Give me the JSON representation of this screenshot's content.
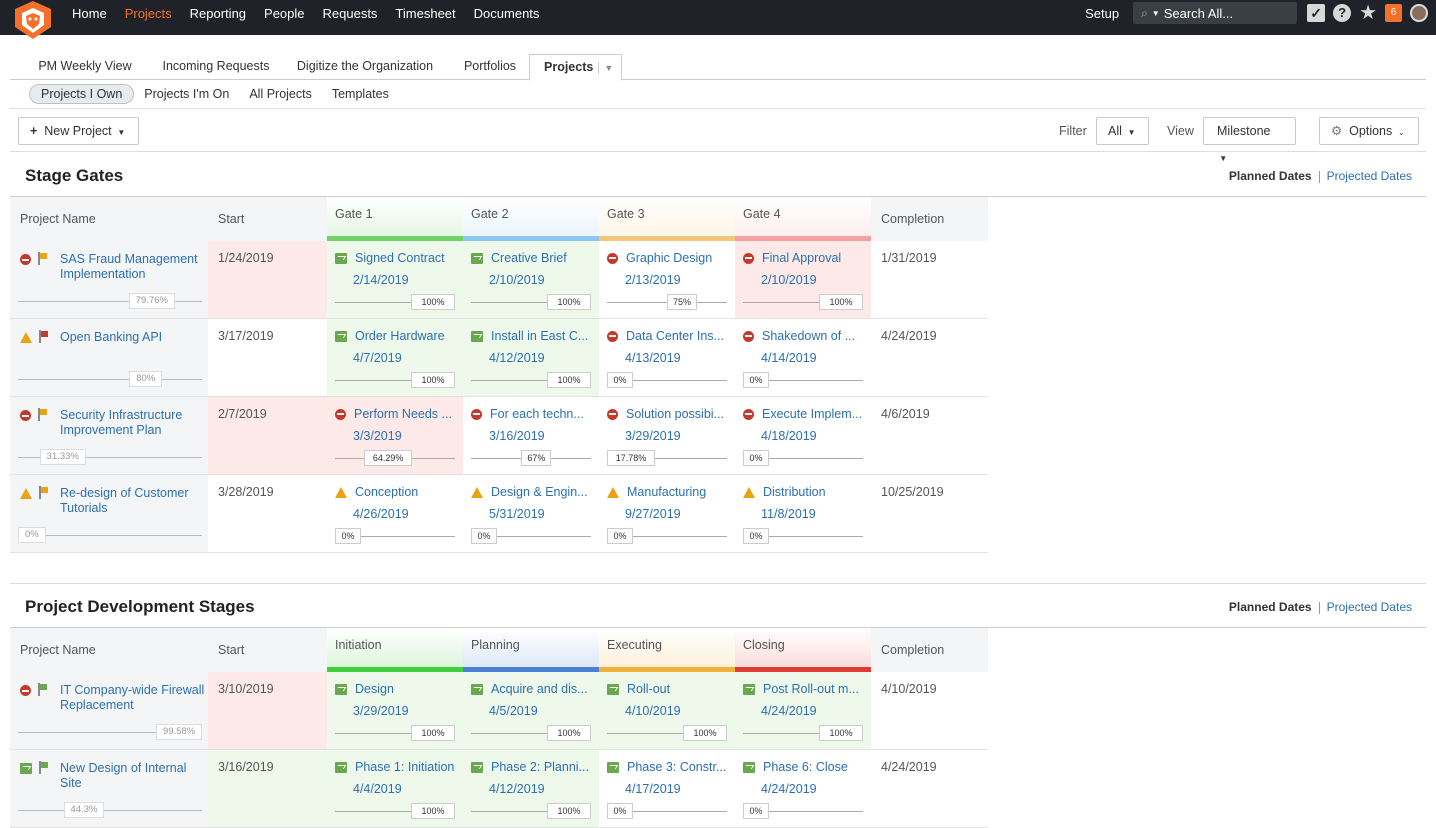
{
  "nav": {
    "items": [
      "Home",
      "Projects",
      "Reporting",
      "People",
      "Requests",
      "Timesheet",
      "Documents"
    ],
    "active": 1
  },
  "topright": {
    "setup": "Setup",
    "search": "Search All...",
    "badge": "6"
  },
  "tabs": [
    "PM Weekly View",
    "Incoming Requests",
    "Digitize the Organization",
    "Portfolios",
    "Projects"
  ],
  "subtabs": [
    "Projects I Own",
    "Projects I'm On",
    "All Projects",
    "Templates"
  ],
  "toolbar": {
    "new_project": "New Project",
    "filter_label": "Filter",
    "filter_value": "All",
    "view_label": "View",
    "view_value": "Milestone",
    "options": "Options"
  },
  "stage_gates": {
    "title": "Stage Gates",
    "planned": "Planned Dates",
    "projected": "Projected Dates",
    "headers": {
      "name": "Project Name",
      "start": "Start",
      "gates": [
        "Gate 1",
        "Gate 2",
        "Gate 3",
        "Gate 4"
      ],
      "completion": "Completion"
    },
    "gate_colors": [
      "#6fd36a",
      "#8cc7ef",
      "#f4c67a",
      "#f2a2a2"
    ],
    "rows": [
      {
        "status": "red",
        "flag": "#e8a317",
        "name": "SAS Fraud Management Implementation",
        "progress": "79.76%",
        "pct": 0.7976,
        "start": "1/24/2019",
        "completion": "1/31/2019",
        "startbg": "#fde9e8",
        "cells": [
          {
            "icon": "green",
            "name": "Signed Contract",
            "date": "2/14/2019",
            "pct": "100%",
            "p": 1,
            "bg": "#eef9ec"
          },
          {
            "icon": "green",
            "name": "Creative Brief",
            "date": "2/10/2019",
            "pct": "100%",
            "p": 1,
            "bg": "#eef9ec"
          },
          {
            "icon": "red",
            "name": "Graphic Design",
            "date": "2/13/2019",
            "pct": "75%",
            "p": 0.75,
            "bg": "#fff"
          },
          {
            "icon": "red",
            "name": "Final Approval",
            "date": "2/10/2019",
            "pct": "100%",
            "p": 1,
            "bg": "#fde9e8"
          }
        ]
      },
      {
        "status": "yellow",
        "flag": "#c5392c",
        "name": "Open Banking API",
        "progress": "80%",
        "pct": 0.8,
        "start": "3/17/2019",
        "completion": "4/24/2019",
        "startbg": "#fff",
        "cells": [
          {
            "icon": "green",
            "name": "Order Hardware",
            "date": "4/7/2019",
            "pct": "100%",
            "p": 1,
            "bg": "#eef9ec"
          },
          {
            "icon": "green",
            "name": "Install in East C...",
            "date": "4/12/2019",
            "pct": "100%",
            "p": 1,
            "bg": "#eef9ec"
          },
          {
            "icon": "red",
            "name": "Data Center Ins...",
            "date": "4/13/2019",
            "pct": "0%",
            "p": 0,
            "bg": "#fff"
          },
          {
            "icon": "red",
            "name": "Shakedown of ...",
            "date": "4/14/2019",
            "pct": "0%",
            "p": 0,
            "bg": "#fff"
          }
        ]
      },
      {
        "status": "red",
        "flag": "#e8a317",
        "name": "Security Infrastructure Improvement Plan",
        "progress": "31.33%",
        "pct": 0.3133,
        "start": "2/7/2019",
        "completion": "4/6/2019",
        "startbg": "#fde9e8",
        "cells": [
          {
            "icon": "red",
            "name": "Perform Needs ...",
            "date": "3/3/2019",
            "pct": "64.29%",
            "p": 0.6429,
            "bg": "#fde9e8"
          },
          {
            "icon": "red",
            "name": "For each techn...",
            "date": "3/16/2019",
            "pct": "67%",
            "p": 0.67,
            "bg": "#fff"
          },
          {
            "icon": "red",
            "name": "Solution possibi...",
            "date": "3/29/2019",
            "pct": "17.78%",
            "p": 0.1778,
            "bg": "#fff"
          },
          {
            "icon": "red",
            "name": "Execute Implem...",
            "date": "4/18/2019",
            "pct": "0%",
            "p": 0,
            "bg": "#fff"
          }
        ]
      },
      {
        "status": "yellow",
        "flag": "#e8a317",
        "name": "Re-design of Customer Tutorials",
        "progress": "0%",
        "pct": 0,
        "start": "3/28/2019",
        "completion": "10/25/2019",
        "startbg": "#fff",
        "cells": [
          {
            "icon": "yellow",
            "name": "Conception",
            "date": "4/26/2019",
            "pct": "0%",
            "p": 0,
            "bg": "#fff"
          },
          {
            "icon": "yellow",
            "name": "Design & Engin...",
            "date": "5/31/2019",
            "pct": "0%",
            "p": 0,
            "bg": "#fff"
          },
          {
            "icon": "yellow",
            "name": "Manufacturing",
            "date": "9/27/2019",
            "pct": "0%",
            "p": 0,
            "bg": "#fff"
          },
          {
            "icon": "yellow",
            "name": "Distribution",
            "date": "11/8/2019",
            "pct": "0%",
            "p": 0,
            "bg": "#fff"
          }
        ]
      }
    ]
  },
  "dev_stages": {
    "title": "Project Development Stages",
    "planned": "Planned Dates",
    "projected": "Projected Dates",
    "headers": {
      "name": "Project Name",
      "start": "Start",
      "gates": [
        "Initiation",
        "Planning",
        "Executing",
        "Closing"
      ],
      "completion": "Completion"
    },
    "gate_colors": [
      "#3fcf3a",
      "#4a7fd6",
      "#f0b23a",
      "#e03a34"
    ],
    "rows": [
      {
        "status": "red",
        "flag": "#6aa84f",
        "name": "IT Company-wide Firewall Replacement",
        "progress": "99.58%",
        "pct": 0.9958,
        "start": "3/10/2019",
        "completion": "4/10/2019",
        "startbg": "#fde9e8",
        "cells": [
          {
            "icon": "green",
            "name": "Design",
            "date": "3/29/2019",
            "pct": "100%",
            "p": 1,
            "bg": "#eef9ec"
          },
          {
            "icon": "green",
            "name": "Acquire and dis...",
            "date": "4/5/2019",
            "pct": "100%",
            "p": 1,
            "bg": "#eef9ec"
          },
          {
            "icon": "green",
            "name": "Roll-out",
            "date": "4/10/2019",
            "pct": "100%",
            "p": 1,
            "bg": "#eef9ec"
          },
          {
            "icon": "green",
            "name": "Post Roll-out m...",
            "date": "4/24/2019",
            "pct": "100%",
            "p": 1,
            "bg": "#eef9ec"
          }
        ]
      },
      {
        "status": "green",
        "flag": "#6aa84f",
        "name": "New Design of Internal Site",
        "progress": "44.3%",
        "pct": 0.443,
        "start": "3/16/2019",
        "completion": "4/24/2019",
        "startbg": "#eef9ec",
        "cells": [
          {
            "icon": "green",
            "name": "Phase 1: Initiation",
            "date": "4/4/2019",
            "pct": "100%",
            "p": 1,
            "bg": "#eef9ec"
          },
          {
            "icon": "green",
            "name": "Phase 2: Planni...",
            "date": "4/12/2019",
            "pct": "100%",
            "p": 1,
            "bg": "#eef9ec"
          },
          {
            "icon": "green",
            "name": "Phase 3: Constr...",
            "date": "4/17/2019",
            "pct": "0%",
            "p": 0,
            "bg": "#fff"
          },
          {
            "icon": "green",
            "name": "Phase 6: Close",
            "date": "4/24/2019",
            "pct": "0%",
            "p": 0,
            "bg": "#fff"
          }
        ]
      }
    ]
  }
}
